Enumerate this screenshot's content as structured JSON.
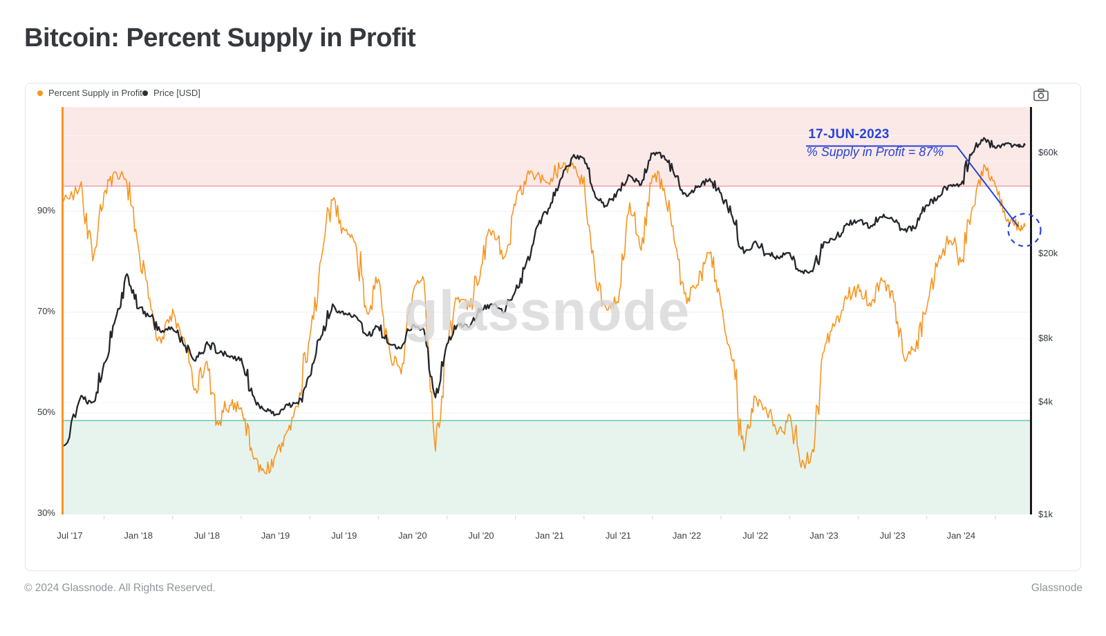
{
  "header": {
    "title": "Bitcoin: Percent Supply in Profit"
  },
  "watermark": {
    "text": "glassnode"
  },
  "footer": {
    "left": "© 2024 Glassnode. All Rights Reserved.",
    "right": "Glassnode"
  },
  "toolbar": {
    "camera_icon": "camera-icon"
  },
  "annotation": {
    "date": "17-JUN-2023",
    "label": "% Supply in Profit = 87%",
    "color": "#2743d6",
    "points_to_value_pct": 87
  },
  "card": {
    "legend": {
      "items": [
        {
          "label": "Percent Supply in Profit",
          "color": "#f7941e"
        },
        {
          "label": "Price [USD]",
          "color": "#2b2f36"
        }
      ]
    }
  },
  "chart_data": {
    "type": "line",
    "title": "Bitcoin: Percent Supply in Profit",
    "x_start": "2017-07",
    "x_interval": "1 month",
    "x_end": "2024-06",
    "x_ticks": [
      "Jul '17",
      "Jan '18",
      "Jul '18",
      "Jan '19",
      "Jul '19",
      "Jan '20",
      "Jul '20",
      "Jan '21",
      "Jul '21",
      "Jan '22",
      "Jul '22",
      "Jan '23",
      "Jul '23",
      "Jan '24"
    ],
    "left_axis": {
      "unit": "%",
      "ticks": [
        90,
        70,
        50,
        30
      ],
      "tick_labels": [
        "90%",
        "70%",
        "50%",
        "30%"
      ],
      "scale": "linear"
    },
    "right_axis": {
      "unit": "USD",
      "ticks": [
        60000,
        20000,
        8000,
        4000,
        1000
      ],
      "tick_labels": [
        "$60k",
        "$20k",
        "$8k",
        "$4k",
        "$1k"
      ],
      "scale": "log"
    },
    "grid": "on",
    "legend_position": "top-left",
    "bands": {
      "overbought": {
        "above_pct": 95,
        "fill": "#fbe9e8",
        "line_color": "#f29ca6"
      },
      "oversold": {
        "below_pct": 48.5,
        "fill": "#e7f4ee",
        "line_color": "#67c6a6"
      }
    },
    "series": [
      {
        "name": "Percent Supply in Profit",
        "axis": "left",
        "color": "#f7941e",
        "values": [
          92,
          95,
          81,
          94,
          97,
          96,
          82,
          72,
          64,
          70,
          64,
          54,
          60,
          47,
          52,
          51,
          42,
          38,
          41,
          46,
          52,
          65,
          80,
          93,
          86,
          84,
          70,
          76,
          62,
          57,
          74,
          77,
          43,
          64,
          73,
          71,
          79,
          87,
          80,
          92,
          97,
          98,
          95,
          99,
          99,
          96,
          77,
          70,
          72,
          91,
          83,
          97,
          95,
          83,
          72,
          76,
          82,
          72,
          61,
          43,
          53,
          50,
          46,
          50,
          40,
          42,
          63,
          68,
          73,
          75,
          71,
          76,
          74,
          61,
          63,
          71,
          81,
          85,
          80,
          91,
          99,
          95,
          88,
          87,
          87
        ]
      },
      {
        "name": "Price [USD]",
        "axis": "right",
        "color": "#23262b",
        "values": [
          2500,
          4300,
          4000,
          6100,
          9800,
          16000,
          11200,
          10300,
          8600,
          9000,
          7500,
          6300,
          7700,
          6900,
          6600,
          6400,
          4300,
          3700,
          3500,
          3900,
          4000,
          5300,
          8200,
          11500,
          10500,
          10200,
          8300,
          9200,
          7500,
          7200,
          9300,
          8800,
          4200,
          7500,
          9400,
          9100,
          11000,
          11600,
          10700,
          13500,
          18500,
          28000,
          33000,
          46000,
          58000,
          57000,
          37000,
          34000,
          40000,
          47000,
          43000,
          60000,
          58000,
          47000,
          38000,
          42000,
          45000,
          39000,
          30000,
          20000,
          23000,
          20000,
          19300,
          20400,
          16500,
          16700,
          23000,
          23500,
          28000,
          29000,
          27000,
          30400,
          29300,
          26000,
          26800,
          34000,
          37500,
          42500,
          42800,
          61000,
          70000,
          64000,
          67500,
          65000,
          65500
        ]
      }
    ]
  }
}
